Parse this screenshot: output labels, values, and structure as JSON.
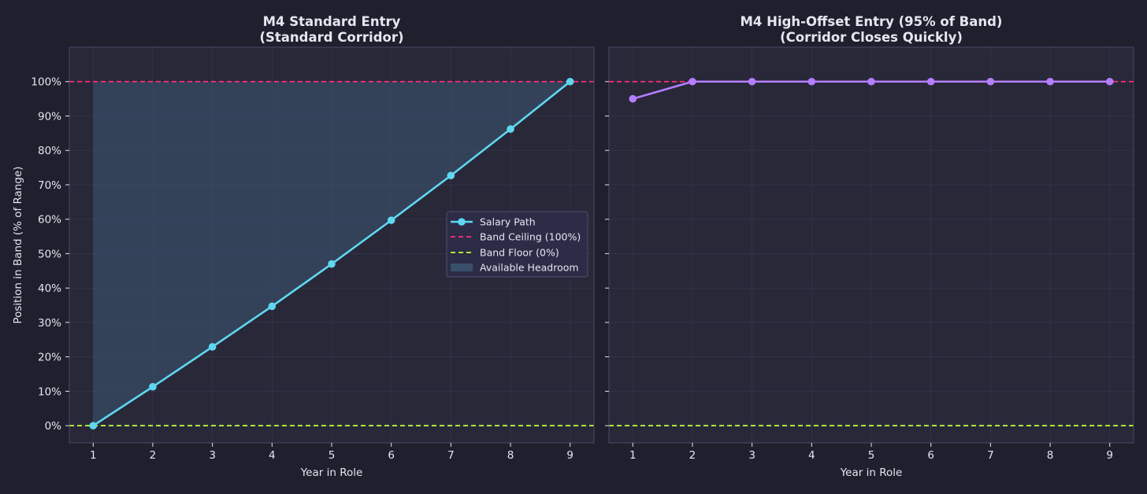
{
  "colors": {
    "figure_bg": "#1f1f2e",
    "axes_bg": "#282839",
    "spine": "#4a4a66",
    "grid": "#35354a",
    "text": "#e6e6f0",
    "salary_left": "#5fd7f0",
    "salary_right": "#b57dff",
    "ceiling": "#ff2d7a",
    "floor": "#c6ff3d",
    "headroom": "#3a5470",
    "legend_bg": "#2d2c48",
    "legend_border": "#4e4d6c"
  },
  "chart_data": [
    {
      "type": "line",
      "title": "M4 Standard Entry\n(Standard Corridor)",
      "xlabel": "Year in Role",
      "ylabel": "Position in Band (% of Range)",
      "x": [
        1,
        2,
        3,
        4,
        5,
        6,
        7,
        8,
        9
      ],
      "xticks": [
        "1",
        "2",
        "3",
        "4",
        "5",
        "6",
        "7",
        "8",
        "9"
      ],
      "yticks": [
        "0%",
        "10%",
        "20%",
        "30%",
        "40%",
        "50%",
        "60%",
        "70%",
        "80%",
        "90%",
        "100%"
      ],
      "xlim": [
        0.6,
        9.4
      ],
      "ylim": [
        -5,
        110
      ],
      "grid": true,
      "series": [
        {
          "name": "Salary Path",
          "values": [
            0,
            11.3,
            22.9,
            34.7,
            47.0,
            59.7,
            72.7,
            86.2,
            100
          ]
        }
      ],
      "reference_lines": [
        {
          "name": "Band Ceiling (100%)",
          "y": 100,
          "style": "dashed",
          "color": "#ff2d7a"
        },
        {
          "name": "Band Floor (0%)",
          "y": 0,
          "style": "dashed",
          "color": "#c6ff3d"
        }
      ],
      "shaded_area": {
        "name": "Available Headroom",
        "from_series": "Salary Path",
        "to_y": 100
      },
      "legend": {
        "placement": "center-right",
        "entries": [
          "Salary Path",
          "Band Ceiling (100%)",
          "Band Floor (0%)",
          "Available Headroom"
        ]
      }
    },
    {
      "type": "line",
      "title": "M4 High-Offset Entry (95% of Band)\n(Corridor Closes Quickly)",
      "xlabel": "Year in Role",
      "ylabel": "",
      "x": [
        1,
        2,
        3,
        4,
        5,
        6,
        7,
        8,
        9
      ],
      "xticks": [
        "1",
        "2",
        "3",
        "4",
        "5",
        "6",
        "7",
        "8",
        "9"
      ],
      "yticks": [],
      "xlim": [
        0.6,
        9.4
      ],
      "ylim": [
        -5,
        110
      ],
      "grid": true,
      "series": [
        {
          "values": [
            95,
            100,
            100,
            100,
            100,
            100,
            100,
            100,
            100
          ]
        }
      ],
      "reference_lines": [
        {
          "y": 100,
          "style": "dashed",
          "color": "#ff2d7a"
        },
        {
          "y": 0,
          "style": "dashed",
          "color": "#c6ff3d"
        }
      ]
    }
  ]
}
